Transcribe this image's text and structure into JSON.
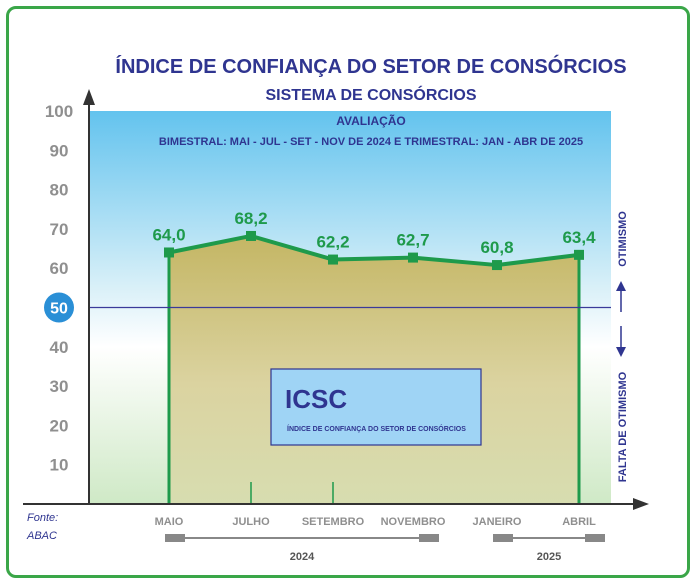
{
  "title": "ÍNDICE DE CONFIANÇA DO SETOR DE CONSÓRCIOS",
  "subtitle": "SISTEMA DE CONSÓRCIOS",
  "evaluation_heading": "AVALIAÇÃO",
  "evaluation_period": "BIMESTRAL: MAI - JUL - SET - NOV DE 2024 E TRIMESTRAL: JAN - ABR DE 2025",
  "side_labels": {
    "upper": "OTIMISMO",
    "lower": "FALTA DE OTIMISMO"
  },
  "legend_box": {
    "acronym": "ICSC",
    "description": "ÍNDICE DE CONFIANÇA DO SETOR DE CONSÓRCIOS"
  },
  "source": {
    "line1": "Fonte:",
    "line2": "ABAC"
  },
  "colors": {
    "line": "#1e9a4b",
    "area": "#c9bd6e",
    "title": "#2f3590",
    "threshold": "#3a3a9a",
    "marker50": "#2a8fd6"
  },
  "chart_data": {
    "type": "area",
    "x": [
      "MAIO",
      "JULHO",
      "SETEMBRO",
      "NOVEMBRO",
      "JANEIRO",
      "ABRIL"
    ],
    "values": [
      64.0,
      68.2,
      62.2,
      62.7,
      60.8,
      63.4
    ],
    "data_labels": [
      "64,0",
      "68,2",
      "62,2",
      "62,7",
      "60,8",
      "63,4"
    ],
    "yticks": [
      10,
      20,
      30,
      40,
      50,
      60,
      70,
      80,
      90,
      100
    ],
    "ylim": [
      0,
      100
    ],
    "threshold": 50,
    "year_groups": [
      {
        "label": "2024",
        "months": [
          "MAIO",
          "JULHO",
          "SETEMBRO",
          "NOVEMBRO"
        ]
      },
      {
        "label": "2025",
        "months": [
          "JANEIRO",
          "ABRIL"
        ]
      }
    ]
  }
}
